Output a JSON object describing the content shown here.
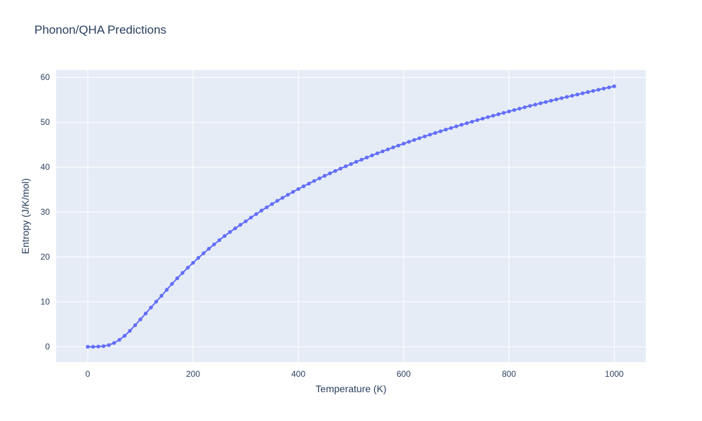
{
  "page": {
    "background": "#ffffff"
  },
  "chart_data": {
    "type": "line",
    "title": "Phonon/QHA Predictions",
    "xlabel": "Temperature (K)",
    "ylabel": "Entropy (J/K/mol)",
    "xlim": [
      -60,
      1060
    ],
    "ylim": [
      -3.4,
      61.6
    ],
    "xticks": [
      0,
      200,
      400,
      600,
      800,
      1000
    ],
    "yticks": [
      0,
      10,
      20,
      30,
      40,
      50,
      60
    ],
    "grid": true,
    "legend_visible": false,
    "line_color": "#636efa",
    "plot_bg": "#e5ecf6",
    "grid_color": "#ffffff",
    "text_color": "#2a3f5f",
    "series": [
      {
        "name": "Entropy",
        "marker": "circle",
        "x": [
          0,
          10,
          20,
          30,
          40,
          50,
          60,
          70,
          80,
          90,
          100,
          110,
          120,
          130,
          140,
          150,
          160,
          170,
          180,
          190,
          200,
          210,
          220,
          230,
          240,
          250,
          260,
          270,
          280,
          290,
          300,
          310,
          320,
          330,
          340,
          350,
          360,
          370,
          380,
          390,
          400,
          410,
          420,
          430,
          440,
          450,
          460,
          470,
          480,
          490,
          500,
          510,
          520,
          530,
          540,
          550,
          560,
          570,
          580,
          590,
          600,
          610,
          620,
          630,
          640,
          650,
          660,
          670,
          680,
          690,
          700,
          710,
          720,
          730,
          740,
          750,
          760,
          770,
          780,
          790,
          800,
          810,
          820,
          830,
          840,
          850,
          860,
          870,
          880,
          890,
          900,
          910,
          920,
          930,
          940,
          950,
          960,
          970,
          980,
          990,
          1000
        ],
        "y": [
          0.0,
          0.01,
          0.05,
          0.15,
          0.38,
          0.85,
          1.55,
          2.45,
          3.55,
          4.8,
          6.1,
          7.42,
          8.74,
          10.05,
          11.35,
          12.7,
          14.0,
          15.25,
          16.45,
          17.6,
          18.7,
          19.78,
          20.82,
          21.83,
          22.81,
          23.76,
          24.68,
          25.55,
          26.37,
          27.17,
          27.95,
          28.77,
          29.56,
          30.33,
          31.07,
          31.79,
          32.5,
          33.18,
          33.85,
          34.5,
          35.13,
          35.74,
          36.34,
          36.93,
          37.51,
          38.07,
          38.62,
          39.15,
          39.68,
          40.19,
          40.7,
          41.19,
          41.67,
          42.15,
          42.62,
          43.07,
          43.52,
          43.96,
          44.4,
          44.82,
          45.24,
          45.65,
          46.06,
          46.46,
          46.85,
          47.24,
          47.62,
          47.99,
          48.36,
          48.73,
          49.09,
          49.44,
          49.79,
          50.13,
          50.47,
          50.81,
          51.14,
          51.46,
          51.79,
          52.1,
          52.42,
          52.73,
          53.03,
          53.34,
          53.64,
          53.93,
          54.22,
          54.51,
          54.8,
          55.08,
          55.36,
          55.64,
          55.91,
          56.18,
          56.45,
          56.72,
          56.98,
          57.24,
          57.5,
          57.75,
          58.0
        ]
      }
    ]
  }
}
